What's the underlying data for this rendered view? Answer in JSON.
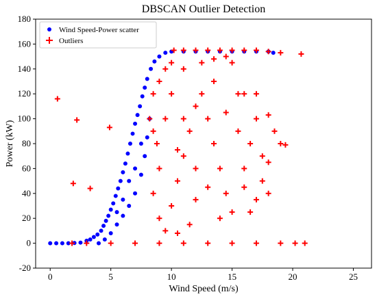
{
  "chart_data": {
    "type": "scatter",
    "title": "DBSCAN Outlier Detection",
    "xlabel": "Wind Speed (m/s)",
    "ylabel": "Power (kW)",
    "xlim": [
      -1.2,
      26.5
    ],
    "ylim": [
      -20,
      180
    ],
    "xticks": [
      0,
      5,
      10,
      15,
      20,
      25
    ],
    "yticks": [
      -20,
      0,
      20,
      40,
      60,
      80,
      100,
      120,
      140,
      160,
      180
    ],
    "grid": false,
    "legend_position": "top-left",
    "series": [
      {
        "name": "Wind Speed-Power scatter",
        "marker": "circle",
        "color": "#0000ff",
        "points": [
          [
            0.0,
            0.0
          ],
          [
            0.5,
            0.0
          ],
          [
            1.0,
            0.0
          ],
          [
            1.5,
            0.0
          ],
          [
            2.0,
            0.2
          ],
          [
            2.5,
            0.5
          ],
          [
            3.0,
            2.0
          ],
          [
            3.3,
            3.0
          ],
          [
            3.6,
            5.0
          ],
          [
            3.9,
            7.0
          ],
          [
            4.2,
            10.0
          ],
          [
            4.4,
            14.0
          ],
          [
            4.6,
            18.0
          ],
          [
            4.8,
            22.0
          ],
          [
            5.0,
            27.0
          ],
          [
            5.2,
            32.0
          ],
          [
            5.4,
            38.0
          ],
          [
            5.6,
            44.0
          ],
          [
            5.8,
            50.0
          ],
          [
            6.0,
            57.0
          ],
          [
            6.2,
            64.0
          ],
          [
            6.4,
            72.0
          ],
          [
            6.6,
            80.0
          ],
          [
            6.8,
            88.0
          ],
          [
            7.0,
            96.0
          ],
          [
            7.2,
            103.0
          ],
          [
            7.4,
            110.0
          ],
          [
            7.6,
            118.0
          ],
          [
            7.8,
            125.0
          ],
          [
            8.0,
            132.0
          ],
          [
            8.3,
            140.0
          ],
          [
            8.6,
            146.0
          ],
          [
            9.0,
            150.0
          ],
          [
            9.5,
            153.0
          ],
          [
            10.0,
            154.0
          ],
          [
            11.0,
            154.0
          ],
          [
            12.0,
            154.0
          ],
          [
            13.0,
            154.0
          ],
          [
            14.0,
            154.0
          ],
          [
            15.0,
            154.0
          ],
          [
            16.0,
            154.0
          ],
          [
            17.0,
            154.0
          ],
          [
            18.0,
            154.0
          ],
          [
            18.4,
            153.0
          ],
          [
            4.0,
            0.0
          ],
          [
            4.5,
            3.0
          ],
          [
            5.0,
            8.0
          ],
          [
            5.5,
            15.0
          ],
          [
            6.0,
            22.0
          ],
          [
            6.5,
            30.0
          ],
          [
            7.0,
            40.0
          ],
          [
            7.5,
            55.0
          ],
          [
            7.8,
            70.0
          ],
          [
            8.0,
            85.0
          ],
          [
            8.2,
            100.0
          ],
          [
            7.5,
            80.0
          ],
          [
            6.5,
            50.0
          ],
          [
            5.5,
            25.0
          ],
          [
            7.0,
            60.0
          ],
          [
            6.0,
            35.0
          ]
        ]
      },
      {
        "name": "Outliers",
        "marker": "plus",
        "color": "#ff0000",
        "points": [
          [
            0.6,
            116.0
          ],
          [
            2.2,
            99.0
          ],
          [
            1.9,
            48.0
          ],
          [
            3.3,
            44.0
          ],
          [
            4.9,
            93.0
          ],
          [
            1.8,
            0.0
          ],
          [
            3.0,
            0.0
          ],
          [
            5.0,
            0.0
          ],
          [
            7.0,
            0.0
          ],
          [
            9.0,
            0.0
          ],
          [
            11.0,
            0.0
          ],
          [
            13.0,
            0.0
          ],
          [
            15.0,
            0.0
          ],
          [
            17.0,
            0.0
          ],
          [
            19.0,
            0.0
          ],
          [
            20.2,
            0.0
          ],
          [
            21.0,
            0.0
          ],
          [
            10.2,
            155.0
          ],
          [
            11.0,
            155.0
          ],
          [
            12.0,
            155.0
          ],
          [
            13.0,
            155.0
          ],
          [
            14.0,
            155.0
          ],
          [
            15.0,
            155.0
          ],
          [
            16.0,
            155.0
          ],
          [
            17.0,
            155.0
          ],
          [
            18.0,
            154.0
          ],
          [
            19.0,
            153.0
          ],
          [
            20.7,
            152.0
          ],
          [
            8.5,
            120.0
          ],
          [
            9.0,
            130.0
          ],
          [
            9.5,
            140.0
          ],
          [
            10.0,
            145.0
          ],
          [
            8.2,
            100.0
          ],
          [
            8.5,
            90.0
          ],
          [
            8.8,
            80.0
          ],
          [
            9.0,
            60.0
          ],
          [
            8.5,
            40.0
          ],
          [
            9.0,
            20.0
          ],
          [
            9.5,
            10.0
          ],
          [
            10.0,
            30.0
          ],
          [
            10.5,
            50.0
          ],
          [
            11.0,
            70.0
          ],
          [
            11.5,
            90.0
          ],
          [
            12.0,
            110.0
          ],
          [
            12.5,
            120.0
          ],
          [
            13.0,
            100.0
          ],
          [
            13.5,
            80.0
          ],
          [
            14.0,
            60.0
          ],
          [
            14.5,
            40.0
          ],
          [
            15.0,
            25.0
          ],
          [
            16.0,
            60.0
          ],
          [
            16.5,
            80.0
          ],
          [
            17.0,
            100.0
          ],
          [
            17.5,
            70.0
          ],
          [
            18.0,
            65.0
          ],
          [
            18.5,
            90.0
          ],
          [
            19.0,
            80.0
          ],
          [
            19.4,
            79.0
          ],
          [
            18.0,
            103.0
          ],
          [
            17.0,
            35.0
          ],
          [
            16.0,
            45.0
          ],
          [
            15.5,
            120.0
          ],
          [
            14.5,
            105.0
          ],
          [
            13.5,
            130.0
          ],
          [
            12.0,
            35.0
          ],
          [
            11.5,
            15.0
          ],
          [
            10.5,
            8.0
          ],
          [
            9.5,
            100.0
          ],
          [
            10.0,
            120.0
          ],
          [
            11.0,
            140.0
          ],
          [
            12.5,
            145.0
          ],
          [
            13.5,
            148.0
          ],
          [
            14.5,
            150.0
          ],
          [
            15.0,
            145.0
          ],
          [
            16.0,
            120.0
          ],
          [
            17.0,
            120.0
          ],
          [
            18.0,
            40.0
          ],
          [
            14.0,
            20.0
          ],
          [
            12.0,
            60.0
          ],
          [
            13.0,
            45.0
          ],
          [
            11.0,
            100.0
          ],
          [
            10.5,
            75.0
          ],
          [
            15.5,
            90.0
          ],
          [
            16.5,
            25.0
          ],
          [
            17.5,
            50.0
          ]
        ]
      }
    ]
  }
}
